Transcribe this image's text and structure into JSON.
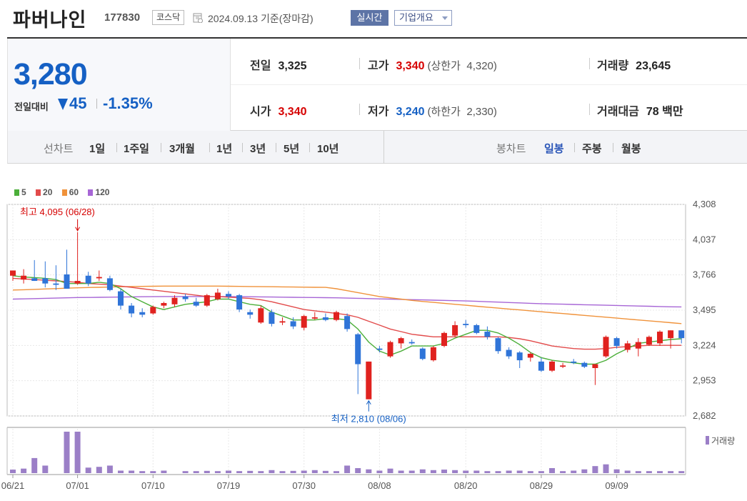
{
  "header": {
    "name": "파버나인",
    "code": "177830",
    "market": "코스닥",
    "date": "2024.09.13",
    "date_suffix": "기준(장마감)",
    "realtime_label": "실시간",
    "company_overview_label": "기업개요"
  },
  "price": {
    "current": "3,280",
    "change_label": "전일대비",
    "change": "45",
    "change_pct": "-1.35%",
    "direction": "down"
  },
  "stats": {
    "prev_close": {
      "label": "전일",
      "value": "3,325"
    },
    "high": {
      "label": "고가",
      "value": "3,340",
      "limit_label": "(상한가",
      "limit_value": "4,320)"
    },
    "volume": {
      "label": "거래량",
      "value": "23,645"
    },
    "open": {
      "label": "시가",
      "value": "3,340"
    },
    "low": {
      "label": "저가",
      "value": "3,240",
      "limit_label": "(하한가",
      "limit_value": "2,330)"
    },
    "trade_value": {
      "label": "거래대금",
      "value": "78 백만"
    }
  },
  "period_bar": {
    "line_label": "선차트",
    "line_periods": [
      "1일",
      "1주일",
      "3개월",
      "1년",
      "3년",
      "5년",
      "10년"
    ],
    "candle_label": "봉차트",
    "candle_periods": [
      "일봉",
      "주봉",
      "월봉"
    ],
    "active_candle": "일봉"
  },
  "colors": {
    "up": "#d60000",
    "down": "#1560c4",
    "up_candle": "#e0221f",
    "down_candle": "#2f74d8",
    "ma5": "#4caf3a",
    "ma20": "#e24b4b",
    "ma60": "#f0923a",
    "ma120": "#a766d6",
    "volume": "#9b7fc7"
  },
  "chart_data": {
    "type": "candlestick",
    "legend": [
      {
        "name": "5",
        "color": "#4caf3a"
      },
      {
        "name": "20",
        "color": "#e24b4b"
      },
      {
        "name": "60",
        "color": "#f0923a"
      },
      {
        "name": "120",
        "color": "#a766d6"
      }
    ],
    "y_ticks": [
      "4,308",
      "4,037",
      "3,766",
      "3,495",
      "3,224",
      "2,953",
      "2,682"
    ],
    "ylim": [
      2682,
      4308
    ],
    "x_tick_labels": [
      "06/21",
      "07/01",
      "07/10",
      "07/19",
      "07/30",
      "08/08",
      "08/20",
      "08/29",
      "09/09"
    ],
    "x_tick_index": [
      0,
      6,
      13,
      20,
      27,
      34,
      42,
      49,
      56
    ],
    "high_annotation": "최고 4,095 (06/28)",
    "low_annotation": "최저 2,810 (08/06)",
    "volume_label": "거래량",
    "candles": [
      {
        "o": 3760,
        "h": 3790,
        "l": 3720,
        "c": 3800
      },
      {
        "o": 3730,
        "h": 3810,
        "l": 3700,
        "c": 3760
      },
      {
        "o": 3740,
        "h": 3880,
        "l": 3720,
        "c": 3720
      },
      {
        "o": 3740,
        "h": 3870,
        "l": 3670,
        "c": 3700
      },
      {
        "o": 3700,
        "h": 3840,
        "l": 3650,
        "c": 3690
      },
      {
        "o": 3770,
        "h": 3960,
        "l": 3660,
        "c": 3660
      },
      {
        "o": 3700,
        "h": 4095,
        "l": 3690,
        "c": 3720
      },
      {
        "o": 3760,
        "h": 3790,
        "l": 3680,
        "c": 3700
      },
      {
        "o": 3740,
        "h": 3800,
        "l": 3720,
        "c": 3750
      },
      {
        "o": 3740,
        "h": 3760,
        "l": 3640,
        "c": 3650
      },
      {
        "o": 3640,
        "h": 3660,
        "l": 3500,
        "c": 3530
      },
      {
        "o": 3530,
        "h": 3550,
        "l": 3440,
        "c": 3470
      },
      {
        "o": 3480,
        "h": 3510,
        "l": 3440,
        "c": 3460
      },
      {
        "o": 3470,
        "h": 3530,
        "l": 3460,
        "c": 3520
      },
      {
        "o": 3530,
        "h": 3560,
        "l": 3510,
        "c": 3550
      },
      {
        "o": 3540,
        "h": 3610,
        "l": 3520,
        "c": 3590
      },
      {
        "o": 3600,
        "h": 3620,
        "l": 3560,
        "c": 3580
      },
      {
        "o": 3560,
        "h": 3590,
        "l": 3520,
        "c": 3530
      },
      {
        "o": 3530,
        "h": 3620,
        "l": 3520,
        "c": 3610
      },
      {
        "o": 3580,
        "h": 3660,
        "l": 3570,
        "c": 3630
      },
      {
        "o": 3620,
        "h": 3640,
        "l": 3580,
        "c": 3600
      },
      {
        "o": 3610,
        "h": 3620,
        "l": 3480,
        "c": 3500
      },
      {
        "o": 3480,
        "h": 3500,
        "l": 3430,
        "c": 3460
      },
      {
        "o": 3400,
        "h": 3530,
        "l": 3390,
        "c": 3510
      },
      {
        "o": 3480,
        "h": 3500,
        "l": 3370,
        "c": 3390
      },
      {
        "o": 3400,
        "h": 3440,
        "l": 3380,
        "c": 3410
      },
      {
        "o": 3410,
        "h": 3440,
        "l": 3350,
        "c": 3370
      },
      {
        "o": 3360,
        "h": 3460,
        "l": 3340,
        "c": 3450
      },
      {
        "o": 3430,
        "h": 3480,
        "l": 3420,
        "c": 3440
      },
      {
        "o": 3440,
        "h": 3470,
        "l": 3410,
        "c": 3420
      },
      {
        "o": 3420,
        "h": 3490,
        "l": 3410,
        "c": 3480
      },
      {
        "o": 3450,
        "h": 3470,
        "l": 3330,
        "c": 3350
      },
      {
        "o": 3310,
        "h": 3320,
        "l": 2850,
        "c": 3080
      },
      {
        "o": 2810,
        "h": 3100,
        "l": 2810,
        "c": 3100
      },
      {
        "o": 3200,
        "h": 3220,
        "l": 3170,
        "c": 3190
      },
      {
        "o": 3140,
        "h": 3260,
        "l": 3130,
        "c": 3250
      },
      {
        "o": 3240,
        "h": 3290,
        "l": 3200,
        "c": 3280
      },
      {
        "o": 3250,
        "h": 3270,
        "l": 3230,
        "c": 3240
      },
      {
        "o": 3200,
        "h": 3210,
        "l": 3110,
        "c": 3120
      },
      {
        "o": 3110,
        "h": 3220,
        "l": 3100,
        "c": 3210
      },
      {
        "o": 3220,
        "h": 3330,
        "l": 3210,
        "c": 3320
      },
      {
        "o": 3300,
        "h": 3410,
        "l": 3290,
        "c": 3380
      },
      {
        "o": 3390,
        "h": 3420,
        "l": 3360,
        "c": 3380
      },
      {
        "o": 3380,
        "h": 3390,
        "l": 3310,
        "c": 3320
      },
      {
        "o": 3330,
        "h": 3370,
        "l": 3270,
        "c": 3290
      },
      {
        "o": 3280,
        "h": 3290,
        "l": 3160,
        "c": 3180
      },
      {
        "o": 3190,
        "h": 3210,
        "l": 3120,
        "c": 3140
      },
      {
        "o": 3170,
        "h": 3180,
        "l": 3050,
        "c": 3110
      },
      {
        "o": 3130,
        "h": 3170,
        "l": 3100,
        "c": 3160
      },
      {
        "o": 3100,
        "h": 3130,
        "l": 3020,
        "c": 3030
      },
      {
        "o": 3030,
        "h": 3110,
        "l": 3020,
        "c": 3100
      },
      {
        "o": 3060,
        "h": 3090,
        "l": 3050,
        "c": 3070
      },
      {
        "o": 3100,
        "h": 3120,
        "l": 3080,
        "c": 3090
      },
      {
        "o": 3090,
        "h": 3100,
        "l": 3050,
        "c": 3060
      },
      {
        "o": 3050,
        "h": 3080,
        "l": 2920,
        "c": 3080
      },
      {
        "o": 3140,
        "h": 3300,
        "l": 3130,
        "c": 3290
      },
      {
        "o": 3280,
        "h": 3290,
        "l": 3200,
        "c": 3220
      },
      {
        "o": 3190,
        "h": 3260,
        "l": 3170,
        "c": 3240
      },
      {
        "o": 3200,
        "h": 3280,
        "l": 3140,
        "c": 3250
      },
      {
        "o": 3230,
        "h": 3300,
        "l": 3220,
        "c": 3290
      },
      {
        "o": 3240,
        "h": 3340,
        "l": 3220,
        "c": 3330
      },
      {
        "o": 3280,
        "h": 3340,
        "l": 3200,
        "c": 3340
      },
      {
        "o": 3340,
        "h": 3340,
        "l": 3240,
        "c": 3280
      }
    ],
    "ma5": [
      3760,
      3750,
      3745,
      3740,
      3730,
      3700,
      3700,
      3700,
      3710,
      3700,
      3660,
      3600,
      3560,
      3520,
      3500,
      3520,
      3540,
      3550,
      3560,
      3580,
      3580,
      3560,
      3540,
      3530,
      3480,
      3450,
      3420,
      3420,
      3420,
      3430,
      3430,
      3420,
      3350,
      3250,
      3180,
      3150,
      3180,
      3220,
      3220,
      3220,
      3240,
      3280,
      3310,
      3340,
      3340,
      3320,
      3280,
      3230,
      3170,
      3130,
      3110,
      3100,
      3090,
      3080,
      3080,
      3110,
      3160,
      3200,
      3240,
      3250,
      3260,
      3270,
      3275
    ],
    "ma20": [
      3740,
      3735,
      3730,
      3725,
      3720,
      3715,
      3710,
      3700,
      3695,
      3690,
      3680,
      3670,
      3660,
      3650,
      3640,
      3630,
      3620,
      3610,
      3600,
      3600,
      3595,
      3590,
      3585,
      3575,
      3560,
      3540,
      3520,
      3500,
      3490,
      3480,
      3470,
      3460,
      3440,
      3410,
      3380,
      3350,
      3330,
      3310,
      3300,
      3290,
      3290,
      3290,
      3290,
      3290,
      3290,
      3290,
      3285,
      3275,
      3260,
      3240,
      3220,
      3210,
      3200,
      3195,
      3195,
      3200,
      3210,
      3215,
      3220,
      3225,
      3225,
      3225,
      3225
    ],
    "ma60": [
      3650,
      3652,
      3655,
      3658,
      3661,
      3664,
      3667,
      3669,
      3671,
      3673,
      3675,
      3677,
      3678,
      3679,
      3680,
      3680,
      3680,
      3680,
      3680,
      3680,
      3679,
      3678,
      3677,
      3676,
      3675,
      3674,
      3673,
      3672,
      3671,
      3670,
      3660,
      3645,
      3630,
      3615,
      3600,
      3590,
      3580,
      3570,
      3562,
      3555,
      3548,
      3540,
      3533,
      3525,
      3518,
      3511,
      3504,
      3497,
      3490,
      3483,
      3476,
      3469,
      3462,
      3455,
      3448,
      3441,
      3434,
      3427,
      3420,
      3413,
      3406,
      3399,
      3392
    ],
    "ma120": [
      3580,
      3582,
      3584,
      3586,
      3588,
      3590,
      3592,
      3593,
      3594,
      3595,
      3596,
      3597,
      3598,
      3599,
      3600,
      3600,
      3600,
      3600,
      3600,
      3600,
      3600,
      3599,
      3598,
      3597,
      3596,
      3595,
      3594,
      3593,
      3592,
      3591,
      3590,
      3588,
      3586,
      3584,
      3582,
      3580,
      3578,
      3576,
      3574,
      3572,
      3570,
      3568,
      3566,
      3563,
      3560,
      3557,
      3554,
      3551,
      3548,
      3545,
      3543,
      3541,
      3539,
      3537,
      3535,
      3533,
      3531,
      3529,
      3527,
      3525,
      3523,
      3521,
      3520
    ],
    "volume": [
      14,
      18,
      60,
      30,
      0,
      165,
      165,
      22,
      25,
      30,
      10,
      10,
      8,
      8,
      10,
      0,
      8,
      8,
      9,
      8,
      10,
      8,
      9,
      8,
      12,
      8,
      9,
      10,
      12,
      9,
      8,
      30,
      20,
      15,
      10,
      18,
      10,
      10,
      15,
      12,
      14,
      12,
      10,
      10,
      8,
      8,
      10,
      10,
      8,
      8,
      20,
      8,
      10,
      15,
      28,
      35,
      15,
      10,
      8,
      8,
      8,
      8,
      8
    ]
  }
}
